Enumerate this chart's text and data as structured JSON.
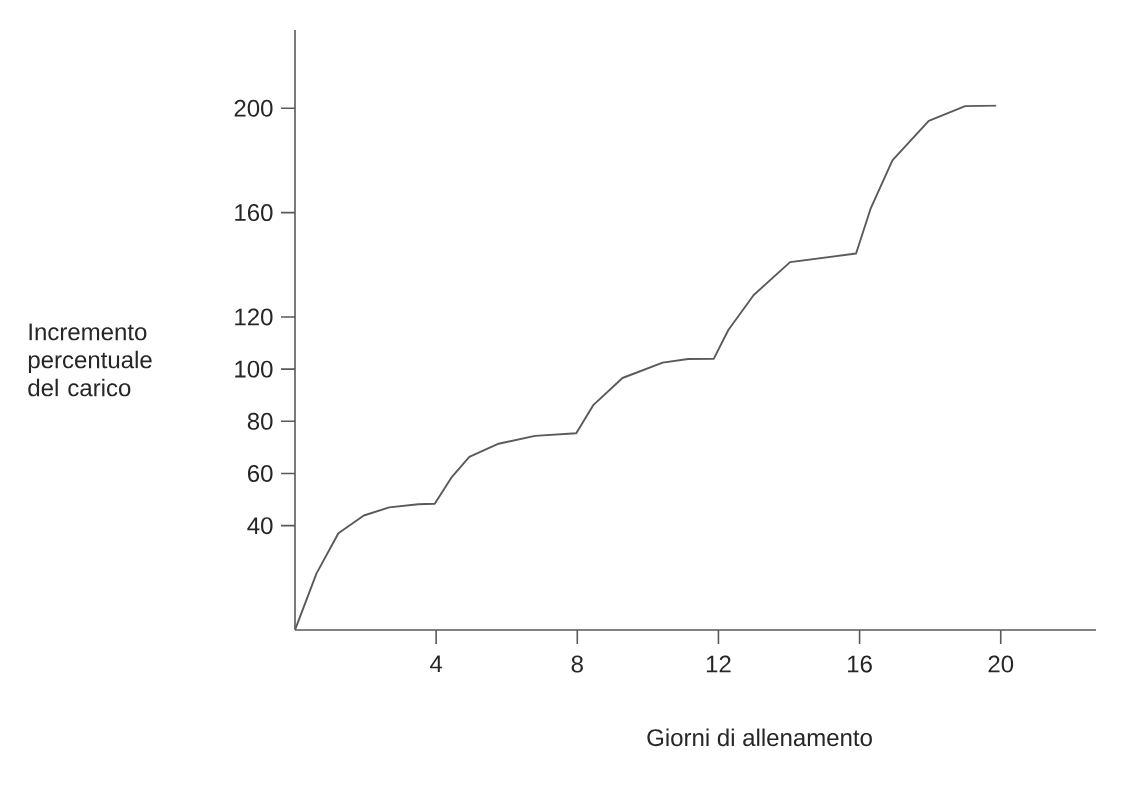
{
  "chart_data": {
    "type": "line",
    "xlabel": "Giorni di allenamento",
    "ylabel": "Incremento percentuale del carico",
    "x": [
      0,
      0.61,
      1.23,
      1.95,
      2.67,
      3.49,
      3.96,
      4.43,
      4.94,
      5.77,
      6.8,
      7.97,
      8.46,
      9.28,
      10.42,
      11.14,
      11.87,
      12.28,
      13.0,
      14.03,
      15.9,
      16.31,
      16.93,
      17.96,
      18.99,
      19.87
    ],
    "series": [
      {
        "color": "#5a5a5a",
        "values": [
          0,
          21.7,
          37.1,
          43.9,
          47,
          48.2,
          48.4,
          58.4,
          66.4,
          71.4,
          74.4,
          75.4,
          86.3,
          96.6,
          102.5,
          103.9,
          104,
          115,
          128.4,
          141,
          144.3,
          161.4,
          180,
          195.2,
          200.8,
          201
        ]
      }
    ],
    "xlim": [
      0,
      22.7
    ],
    "ylim": [
      0,
      230
    ],
    "xticks": [
      4,
      8,
      12,
      16,
      20
    ],
    "yticks": [
      40,
      60,
      80,
      100,
      120,
      160,
      200
    ],
    "grid": false,
    "marker": "none",
    "line_style": "solid"
  }
}
